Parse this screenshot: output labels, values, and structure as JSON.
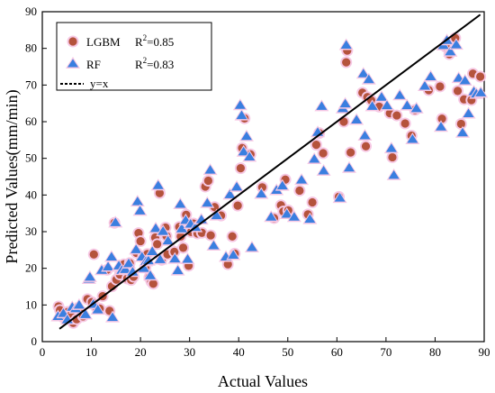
{
  "chart_data": {
    "type": "scatter",
    "xlabel": "Actual Values",
    "ylabel": "Predicted Values(mm/min)",
    "xlim": [
      0,
      90
    ],
    "ylim": [
      0,
      90
    ],
    "xticks": [
      "0",
      "10",
      "20",
      "30",
      "40",
      "50",
      "60",
      "70",
      "80",
      "90"
    ],
    "yticks": [
      "0",
      "10",
      "20",
      "30",
      "40",
      "50",
      "60",
      "70",
      "80",
      "90"
    ],
    "grid": false,
    "legend_position": "top-left",
    "colors": {
      "lgbm": "#b5533c",
      "rf": "#3a7fe0",
      "fit": "#000000",
      "halo": "#f6c8e4"
    },
    "series": [
      {
        "name": "LGBM",
        "r2_label": "R",
        "r2_sup": "2",
        "r2_value": "=0.85",
        "marker": "circle",
        "points": [
          [
            3.3,
            9.6
          ],
          [
            3.6,
            8.6
          ],
          [
            4.2,
            6.7
          ],
          [
            5.2,
            8.1
          ],
          [
            5.8,
            7.2
          ],
          [
            6.3,
            5.1
          ],
          [
            7.0,
            6.1
          ],
          [
            7.8,
            8.4
          ],
          [
            8.3,
            6.9
          ],
          [
            9.2,
            11.6
          ],
          [
            10.1,
            10.8
          ],
          [
            10.5,
            23.8
          ],
          [
            11.0,
            9.4
          ],
          [
            11.7,
            9.0
          ],
          [
            12.3,
            12.4
          ],
          [
            13.2,
            19.6
          ],
          [
            13.7,
            8.4
          ],
          [
            14.2,
            15.1
          ],
          [
            14.7,
            32.4
          ],
          [
            15.1,
            16.9
          ],
          [
            15.8,
            18.3
          ],
          [
            16.6,
            21.1
          ],
          [
            17.3,
            17.2
          ],
          [
            17.8,
            21.4
          ],
          [
            18.1,
            16.8
          ],
          [
            18.6,
            17.7
          ],
          [
            19.2,
            24.2
          ],
          [
            19.6,
            29.6
          ],
          [
            20.0,
            27.4
          ],
          [
            20.5,
            23.0
          ],
          [
            21.0,
            20.2
          ],
          [
            21.4,
            23.9
          ],
          [
            21.8,
            17.5
          ],
          [
            22.2,
            16.4
          ],
          [
            22.6,
            15.8
          ],
          [
            23.0,
            28.4
          ],
          [
            23.4,
            26.6
          ],
          [
            23.9,
            40.5
          ],
          [
            24.3,
            22.3
          ],
          [
            24.7,
            29.6
          ],
          [
            25.1,
            31.1
          ],
          [
            25.3,
            28.8
          ],
          [
            25.5,
            23.8
          ],
          [
            26.9,
            24.5
          ],
          [
            27.9,
            31.3
          ],
          [
            28.2,
            28.7
          ],
          [
            28.7,
            25.6
          ],
          [
            29.3,
            34.6
          ],
          [
            29.8,
            20.7
          ],
          [
            30.3,
            29.9
          ],
          [
            30.8,
            32.2
          ],
          [
            31.6,
            29.5
          ],
          [
            32.5,
            29.7
          ],
          [
            33.2,
            42.3
          ],
          [
            33.8,
            43.9
          ],
          [
            34.3,
            29.0
          ],
          [
            35.1,
            36.7
          ],
          [
            36.4,
            34.4
          ],
          [
            37.8,
            21.1
          ],
          [
            38.7,
            28.7
          ],
          [
            39.2,
            24.0
          ],
          [
            39.8,
            37.1
          ],
          [
            40.4,
            47.3
          ],
          [
            40.7,
            52.8
          ],
          [
            41.2,
            60.9
          ],
          [
            42.4,
            51.1
          ],
          [
            44.8,
            42.1
          ],
          [
            47.2,
            33.7
          ],
          [
            48.6,
            37.2
          ],
          [
            49.1,
            35.5
          ],
          [
            49.5,
            44.2
          ],
          [
            50.1,
            35.8
          ],
          [
            52.4,
            41.2
          ],
          [
            54.1,
            34.7
          ],
          [
            55.0,
            38.0
          ],
          [
            55.8,
            53.7
          ],
          [
            56.4,
            56.9
          ],
          [
            57.2,
            51.4
          ],
          [
            60.4,
            39.5
          ],
          [
            61.4,
            60.0
          ],
          [
            61.9,
            76.2
          ],
          [
            62.1,
            79.4
          ],
          [
            62.8,
            51.6
          ],
          [
            65.2,
            67.9
          ],
          [
            65.9,
            53.3
          ],
          [
            66.2,
            66.7
          ],
          [
            67.0,
            65.8
          ],
          [
            68.6,
            64.1
          ],
          [
            70.8,
            62.3
          ],
          [
            71.3,
            50.3
          ],
          [
            72.2,
            61.7
          ],
          [
            73.9,
            59.5
          ],
          [
            75.2,
            56.2
          ],
          [
            75.9,
            63.2
          ],
          [
            78.7,
            68.6
          ],
          [
            81.0,
            69.6
          ],
          [
            81.4,
            60.8
          ],
          [
            82.2,
            80.4
          ],
          [
            82.9,
            78.4
          ],
          [
            84.1,
            82.8
          ],
          [
            84.6,
            68.4
          ],
          [
            85.3,
            59.4
          ],
          [
            85.9,
            66.1
          ],
          [
            87.7,
            73.1
          ],
          [
            87.4,
            65.9
          ],
          [
            89.2,
            72.3
          ]
        ]
      },
      {
        "name": "RF",
        "r2_label": "R",
        "r2_sup": "2",
        "r2_value": "=0.83",
        "marker": "triangle",
        "points": [
          [
            3.2,
            6.9
          ],
          [
            4.3,
            7.7
          ],
          [
            5.1,
            6.0
          ],
          [
            6.1,
            9.4
          ],
          [
            6.8,
            9.0
          ],
          [
            7.5,
            10.0
          ],
          [
            8.8,
            7.4
          ],
          [
            9.5,
            17.1
          ],
          [
            9.7,
            17.6
          ],
          [
            10.4,
            10.2
          ],
          [
            11.3,
            8.7
          ],
          [
            12.1,
            19.5
          ],
          [
            13.4,
            20.4
          ],
          [
            14.1,
            23.1
          ],
          [
            14.3,
            6.6
          ],
          [
            14.9,
            32.5
          ],
          [
            15.6,
            20.7
          ],
          [
            16.2,
            19.5
          ],
          [
            16.9,
            19.7
          ],
          [
            17.6,
            21.3
          ],
          [
            18.4,
            19.0
          ],
          [
            19.1,
            25.1
          ],
          [
            19.4,
            38.2
          ],
          [
            19.9,
            35.7
          ],
          [
            20.3,
            23.1
          ],
          [
            20.7,
            20.0
          ],
          [
            21.1,
            21.9
          ],
          [
            21.6,
            22.1
          ],
          [
            22.0,
            18.0
          ],
          [
            22.4,
            24.6
          ],
          [
            23.1,
            30.9
          ],
          [
            23.6,
            42.6
          ],
          [
            24.0,
            22.4
          ],
          [
            24.6,
            30.1
          ],
          [
            25.6,
            27.5
          ],
          [
            27.0,
            22.6
          ],
          [
            27.6,
            19.4
          ],
          [
            28.1,
            37.5
          ],
          [
            28.4,
            30.8
          ],
          [
            29.2,
            33.1
          ],
          [
            29.6,
            22.5
          ],
          [
            30.2,
            32.1
          ],
          [
            31.2,
            31.2
          ],
          [
            32.4,
            33.3
          ],
          [
            33.6,
            37.8
          ],
          [
            34.2,
            46.8
          ],
          [
            34.9,
            26.2
          ],
          [
            35.5,
            34.4
          ],
          [
            37.4,
            23.1
          ],
          [
            38.2,
            40.1
          ],
          [
            38.9,
            23.6
          ],
          [
            39.6,
            42.2
          ],
          [
            40.3,
            64.5
          ],
          [
            40.6,
            61.7
          ],
          [
            41.0,
            51.8
          ],
          [
            41.6,
            56.0
          ],
          [
            42.2,
            50.4
          ],
          [
            42.7,
            25.7
          ],
          [
            44.6,
            40.3
          ],
          [
            46.6,
            34.0
          ],
          [
            47.7,
            41.3
          ],
          [
            48.9,
            42.5
          ],
          [
            49.8,
            34.8
          ],
          [
            51.3,
            34.0
          ],
          [
            52.8,
            44.1
          ],
          [
            54.5,
            33.4
          ],
          [
            55.4,
            49.8
          ],
          [
            56.1,
            57.1
          ],
          [
            56.9,
            64.2
          ],
          [
            57.3,
            46.6
          ],
          [
            60.6,
            39.2
          ],
          [
            61.2,
            63.6
          ],
          [
            61.7,
            64.9
          ],
          [
            61.9,
            80.9
          ],
          [
            62.5,
            47.4
          ],
          [
            64.0,
            60.5
          ],
          [
            65.4,
            73.1
          ],
          [
            65.7,
            56.2
          ],
          [
            66.5,
            71.5
          ],
          [
            67.2,
            64.2
          ],
          [
            69.1,
            66.7
          ],
          [
            70.2,
            64.4
          ],
          [
            71.1,
            52.7
          ],
          [
            71.6,
            45.4
          ],
          [
            72.8,
            67.2
          ],
          [
            74.3,
            64.4
          ],
          [
            75.4,
            55.2
          ],
          [
            76.2,
            63.6
          ],
          [
            77.9,
            69.7
          ],
          [
            79.1,
            72.3
          ],
          [
            81.2,
            58.6
          ],
          [
            81.7,
            80.8
          ],
          [
            82.4,
            82.2
          ],
          [
            83.1,
            79.1
          ],
          [
            84.3,
            81.0
          ],
          [
            84.8,
            71.9
          ],
          [
            85.6,
            57.0
          ],
          [
            86.1,
            71.2
          ],
          [
            86.8,
            62.2
          ],
          [
            87.9,
            68.2
          ],
          [
            88.4,
            67.6
          ],
          [
            89.3,
            67.9
          ]
        ]
      }
    ],
    "fit_line": {
      "name": "y=x",
      "points": [
        [
          3.5,
          3.5
        ],
        [
          89.2,
          89.2
        ]
      ]
    }
  }
}
